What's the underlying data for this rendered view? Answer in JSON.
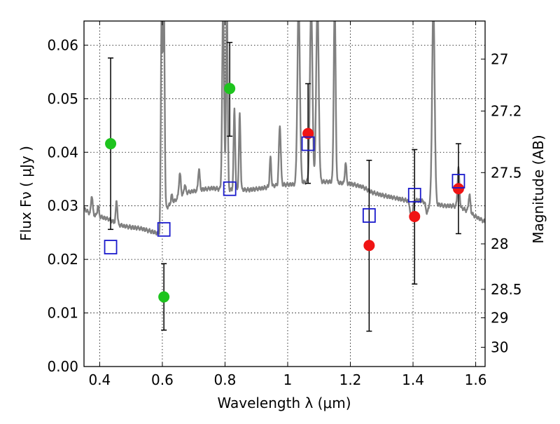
{
  "chart_data": {
    "type": "scatter",
    "xlabel": "Wavelength  λ (μm)",
    "ylabel": "Flux  Fν  ( μJy )",
    "ylabel_right": "Magnitude (AB)",
    "xlim": [
      0.35,
      1.63
    ],
    "ylim": [
      0.0,
      0.0645
    ],
    "grid": true,
    "x_ticks": [
      0.4,
      0.6,
      0.8,
      1.0,
      1.2,
      1.4,
      1.6
    ],
    "x_tick_labels": [
      "0.4",
      "0.6",
      "0.8",
      "1",
      "1.2",
      "1.4",
      "1.6"
    ],
    "y_ticks": [
      0.0,
      0.01,
      0.02,
      0.03,
      0.04,
      0.05,
      0.06
    ],
    "y_tick_labels": [
      "0.00",
      "0.01",
      "0.02",
      "0.03",
      "0.04",
      "0.05",
      "0.06"
    ],
    "right_ticks": [
      {
        "label": "27",
        "flux": 0.0574
      },
      {
        "label": "27.2",
        "flux": 0.0477
      },
      {
        "label": "27.5",
        "flux": 0.0362
      },
      {
        "label": "28",
        "flux": 0.0229
      },
      {
        "label": "28.5",
        "flux": 0.0144
      },
      {
        "label": "29",
        "flux": 0.0091
      },
      {
        "label": "30",
        "flux": 0.0036
      }
    ],
    "colors": {
      "model": "#808080",
      "green": "#1ec41e",
      "red": "#f01414",
      "square": "#1a1acc",
      "errorbar": "#000000"
    },
    "model_spectrum": {
      "continuum": [
        [
          0.35,
          0.0295
        ],
        [
          0.37,
          0.0285
        ],
        [
          0.4,
          0.028
        ],
        [
          0.43,
          0.0275
        ],
        [
          0.46,
          0.0265
        ],
        [
          0.48,
          0.0262
        ],
        [
          0.5,
          0.026
        ],
        [
          0.53,
          0.0258
        ],
        [
          0.56,
          0.0253
        ],
        [
          0.59,
          0.0248
        ],
        [
          0.6,
          0.029
        ],
        [
          0.62,
          0.03
        ],
        [
          0.65,
          0.0315
        ],
        [
          0.68,
          0.0325
        ],
        [
          0.72,
          0.033
        ],
        [
          0.76,
          0.0333
        ],
        [
          0.8,
          0.033
        ],
        [
          0.84,
          0.033
        ],
        [
          0.88,
          0.033
        ],
        [
          0.92,
          0.0333
        ],
        [
          0.96,
          0.0338
        ],
        [
          1.0,
          0.034
        ],
        [
          1.03,
          0.034
        ],
        [
          1.06,
          0.0345
        ],
        [
          1.1,
          0.0345
        ],
        [
          1.14,
          0.0345
        ],
        [
          1.18,
          0.0342
        ],
        [
          1.21,
          0.034
        ],
        [
          1.24,
          0.0335
        ],
        [
          1.27,
          0.0325
        ],
        [
          1.3,
          0.032
        ],
        [
          1.34,
          0.0315
        ],
        [
          1.38,
          0.031
        ],
        [
          1.42,
          0.031
        ],
        [
          1.46,
          0.0305
        ],
        [
          1.5,
          0.03
        ],
        [
          1.53,
          0.03
        ],
        [
          1.56,
          0.0295
        ],
        [
          1.6,
          0.028
        ],
        [
          1.63,
          0.027
        ]
      ],
      "lines": [
        {
          "x": 0.375,
          "peak": 0.032,
          "w": 0.0025
        },
        {
          "x": 0.395,
          "peak": 0.03,
          "w": 0.0025
        },
        {
          "x": 0.454,
          "peak": 0.031,
          "w": 0.0025
        },
        {
          "x": 0.598,
          "peak": 0.068,
          "w": 0.0025
        },
        {
          "x": 0.605,
          "peak": 0.068,
          "w": 0.0025
        },
        {
          "x": 0.63,
          "peak": 0.032,
          "w": 0.0025
        },
        {
          "x": 0.656,
          "peak": 0.036,
          "w": 0.003
        },
        {
          "x": 0.672,
          "peak": 0.034,
          "w": 0.0025
        },
        {
          "x": 0.717,
          "peak": 0.037,
          "w": 0.0025
        },
        {
          "x": 0.794,
          "peak": 0.068,
          "w": 0.003
        },
        {
          "x": 0.806,
          "peak": 0.068,
          "w": 0.0025
        },
        {
          "x": 0.83,
          "peak": 0.048,
          "w": 0.0025
        },
        {
          "x": 0.847,
          "peak": 0.047,
          "w": 0.0025
        },
        {
          "x": 0.945,
          "peak": 0.039,
          "w": 0.0025
        },
        {
          "x": 0.975,
          "peak": 0.045,
          "w": 0.003
        },
        {
          "x": 1.035,
          "peak": 0.068,
          "w": 0.004
        },
        {
          "x": 1.075,
          "peak": 0.068,
          "w": 0.004
        },
        {
          "x": 1.095,
          "peak": 0.068,
          "w": 0.004
        },
        {
          "x": 1.15,
          "peak": 0.068,
          "w": 0.003
        },
        {
          "x": 1.185,
          "peak": 0.038,
          "w": 0.0025
        },
        {
          "x": 1.465,
          "peak": 0.068,
          "w": 0.004
        },
        {
          "x": 1.545,
          "peak": 0.037,
          "w": 0.003
        },
        {
          "x": 1.58,
          "peak": 0.032,
          "w": 0.003
        }
      ],
      "dips": [
        {
          "x": 1.395,
          "depth": 0.0035,
          "w": 0.004
        },
        {
          "x": 1.445,
          "depth": 0.002,
          "w": 0.004
        }
      ]
    },
    "series": [
      {
        "marker": "circle",
        "color": "green",
        "points": [
          {
            "x": 0.435,
            "y": 0.0416,
            "lo": 0.0256,
            "hi": 0.0576
          },
          {
            "x": 0.605,
            "y": 0.013,
            "lo": 0.0068,
            "hi": 0.0192
          },
          {
            "x": 0.815,
            "y": 0.0519,
            "lo": 0.043,
            "hi": 0.0605
          }
        ]
      },
      {
        "marker": "circle",
        "color": "red",
        "points": [
          {
            "x": 1.065,
            "y": 0.0435,
            "lo": 0.0342,
            "hi": 0.0528
          },
          {
            "x": 1.26,
            "y": 0.0226,
            "lo": 0.0066,
            "hi": 0.0385
          },
          {
            "x": 1.405,
            "y": 0.028,
            "lo": 0.0154,
            "hi": 0.0405
          },
          {
            "x": 1.545,
            "y": 0.0332,
            "lo": 0.0248,
            "hi": 0.0416
          }
        ]
      },
      {
        "marker": "square",
        "color": "square",
        "points": [
          {
            "x": 0.435,
            "y": 0.0223
          },
          {
            "x": 0.605,
            "y": 0.0256
          },
          {
            "x": 0.815,
            "y": 0.0332
          },
          {
            "x": 1.065,
            "y": 0.0416
          },
          {
            "x": 1.26,
            "y": 0.0282
          },
          {
            "x": 1.405,
            "y": 0.032
          },
          {
            "x": 1.545,
            "y": 0.0346
          }
        ]
      }
    ]
  }
}
